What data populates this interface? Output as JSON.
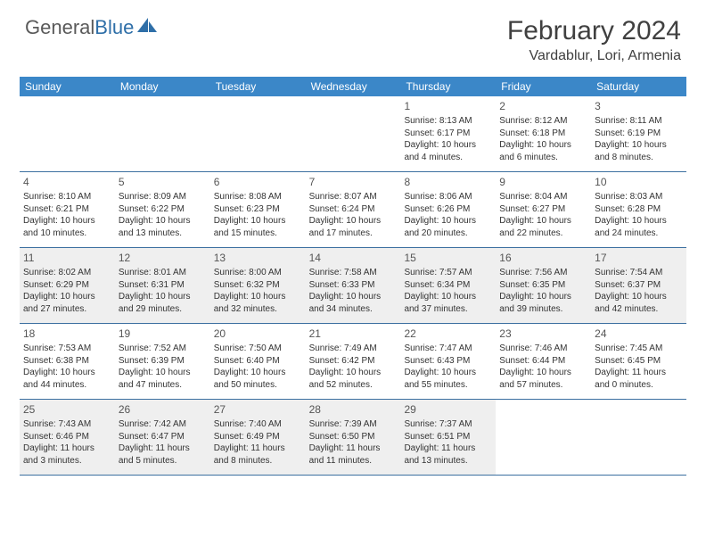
{
  "logo": {
    "part1": "General",
    "part2": "Blue"
  },
  "title": "February 2024",
  "location": "Vardablur, Lori, Armenia",
  "colors": {
    "header_bg": "#3b87c8",
    "border": "#3b6fa0",
    "shade": "#efefef",
    "text": "#333333",
    "logo_gray": "#5a5a5a",
    "logo_blue": "#2f6fa8"
  },
  "dow": [
    "Sunday",
    "Monday",
    "Tuesday",
    "Wednesday",
    "Thursday",
    "Friday",
    "Saturday"
  ],
  "weeks": [
    [
      {
        "n": "",
        "sr": "",
        "ss": "",
        "dl": ""
      },
      {
        "n": "",
        "sr": "",
        "ss": "",
        "dl": ""
      },
      {
        "n": "",
        "sr": "",
        "ss": "",
        "dl": ""
      },
      {
        "n": "",
        "sr": "",
        "ss": "",
        "dl": ""
      },
      {
        "n": "1",
        "sr": "Sunrise: 8:13 AM",
        "ss": "Sunset: 6:17 PM",
        "dl": "Daylight: 10 hours and 4 minutes."
      },
      {
        "n": "2",
        "sr": "Sunrise: 8:12 AM",
        "ss": "Sunset: 6:18 PM",
        "dl": "Daylight: 10 hours and 6 minutes."
      },
      {
        "n": "3",
        "sr": "Sunrise: 8:11 AM",
        "ss": "Sunset: 6:19 PM",
        "dl": "Daylight: 10 hours and 8 minutes."
      }
    ],
    [
      {
        "n": "4",
        "sr": "Sunrise: 8:10 AM",
        "ss": "Sunset: 6:21 PM",
        "dl": "Daylight: 10 hours and 10 minutes."
      },
      {
        "n": "5",
        "sr": "Sunrise: 8:09 AM",
        "ss": "Sunset: 6:22 PM",
        "dl": "Daylight: 10 hours and 13 minutes."
      },
      {
        "n": "6",
        "sr": "Sunrise: 8:08 AM",
        "ss": "Sunset: 6:23 PM",
        "dl": "Daylight: 10 hours and 15 minutes."
      },
      {
        "n": "7",
        "sr": "Sunrise: 8:07 AM",
        "ss": "Sunset: 6:24 PM",
        "dl": "Daylight: 10 hours and 17 minutes."
      },
      {
        "n": "8",
        "sr": "Sunrise: 8:06 AM",
        "ss": "Sunset: 6:26 PM",
        "dl": "Daylight: 10 hours and 20 minutes."
      },
      {
        "n": "9",
        "sr": "Sunrise: 8:04 AM",
        "ss": "Sunset: 6:27 PM",
        "dl": "Daylight: 10 hours and 22 minutes."
      },
      {
        "n": "10",
        "sr": "Sunrise: 8:03 AM",
        "ss": "Sunset: 6:28 PM",
        "dl": "Daylight: 10 hours and 24 minutes."
      }
    ],
    [
      {
        "n": "11",
        "sr": "Sunrise: 8:02 AM",
        "ss": "Sunset: 6:29 PM",
        "dl": "Daylight: 10 hours and 27 minutes."
      },
      {
        "n": "12",
        "sr": "Sunrise: 8:01 AM",
        "ss": "Sunset: 6:31 PM",
        "dl": "Daylight: 10 hours and 29 minutes."
      },
      {
        "n": "13",
        "sr": "Sunrise: 8:00 AM",
        "ss": "Sunset: 6:32 PM",
        "dl": "Daylight: 10 hours and 32 minutes."
      },
      {
        "n": "14",
        "sr": "Sunrise: 7:58 AM",
        "ss": "Sunset: 6:33 PM",
        "dl": "Daylight: 10 hours and 34 minutes."
      },
      {
        "n": "15",
        "sr": "Sunrise: 7:57 AM",
        "ss": "Sunset: 6:34 PM",
        "dl": "Daylight: 10 hours and 37 minutes."
      },
      {
        "n": "16",
        "sr": "Sunrise: 7:56 AM",
        "ss": "Sunset: 6:35 PM",
        "dl": "Daylight: 10 hours and 39 minutes."
      },
      {
        "n": "17",
        "sr": "Sunrise: 7:54 AM",
        "ss": "Sunset: 6:37 PM",
        "dl": "Daylight: 10 hours and 42 minutes."
      }
    ],
    [
      {
        "n": "18",
        "sr": "Sunrise: 7:53 AM",
        "ss": "Sunset: 6:38 PM",
        "dl": "Daylight: 10 hours and 44 minutes."
      },
      {
        "n": "19",
        "sr": "Sunrise: 7:52 AM",
        "ss": "Sunset: 6:39 PM",
        "dl": "Daylight: 10 hours and 47 minutes."
      },
      {
        "n": "20",
        "sr": "Sunrise: 7:50 AM",
        "ss": "Sunset: 6:40 PM",
        "dl": "Daylight: 10 hours and 50 minutes."
      },
      {
        "n": "21",
        "sr": "Sunrise: 7:49 AM",
        "ss": "Sunset: 6:42 PM",
        "dl": "Daylight: 10 hours and 52 minutes."
      },
      {
        "n": "22",
        "sr": "Sunrise: 7:47 AM",
        "ss": "Sunset: 6:43 PM",
        "dl": "Daylight: 10 hours and 55 minutes."
      },
      {
        "n": "23",
        "sr": "Sunrise: 7:46 AM",
        "ss": "Sunset: 6:44 PM",
        "dl": "Daylight: 10 hours and 57 minutes."
      },
      {
        "n": "24",
        "sr": "Sunrise: 7:45 AM",
        "ss": "Sunset: 6:45 PM",
        "dl": "Daylight: 11 hours and 0 minutes."
      }
    ],
    [
      {
        "n": "25",
        "sr": "Sunrise: 7:43 AM",
        "ss": "Sunset: 6:46 PM",
        "dl": "Daylight: 11 hours and 3 minutes."
      },
      {
        "n": "26",
        "sr": "Sunrise: 7:42 AM",
        "ss": "Sunset: 6:47 PM",
        "dl": "Daylight: 11 hours and 5 minutes."
      },
      {
        "n": "27",
        "sr": "Sunrise: 7:40 AM",
        "ss": "Sunset: 6:49 PM",
        "dl": "Daylight: 11 hours and 8 minutes."
      },
      {
        "n": "28",
        "sr": "Sunrise: 7:39 AM",
        "ss": "Sunset: 6:50 PM",
        "dl": "Daylight: 11 hours and 11 minutes."
      },
      {
        "n": "29",
        "sr": "Sunrise: 7:37 AM",
        "ss": "Sunset: 6:51 PM",
        "dl": "Daylight: 11 hours and 13 minutes."
      },
      {
        "n": "",
        "sr": "",
        "ss": "",
        "dl": ""
      },
      {
        "n": "",
        "sr": "",
        "ss": "",
        "dl": ""
      }
    ]
  ],
  "shaded_weeks": [
    2,
    4
  ]
}
